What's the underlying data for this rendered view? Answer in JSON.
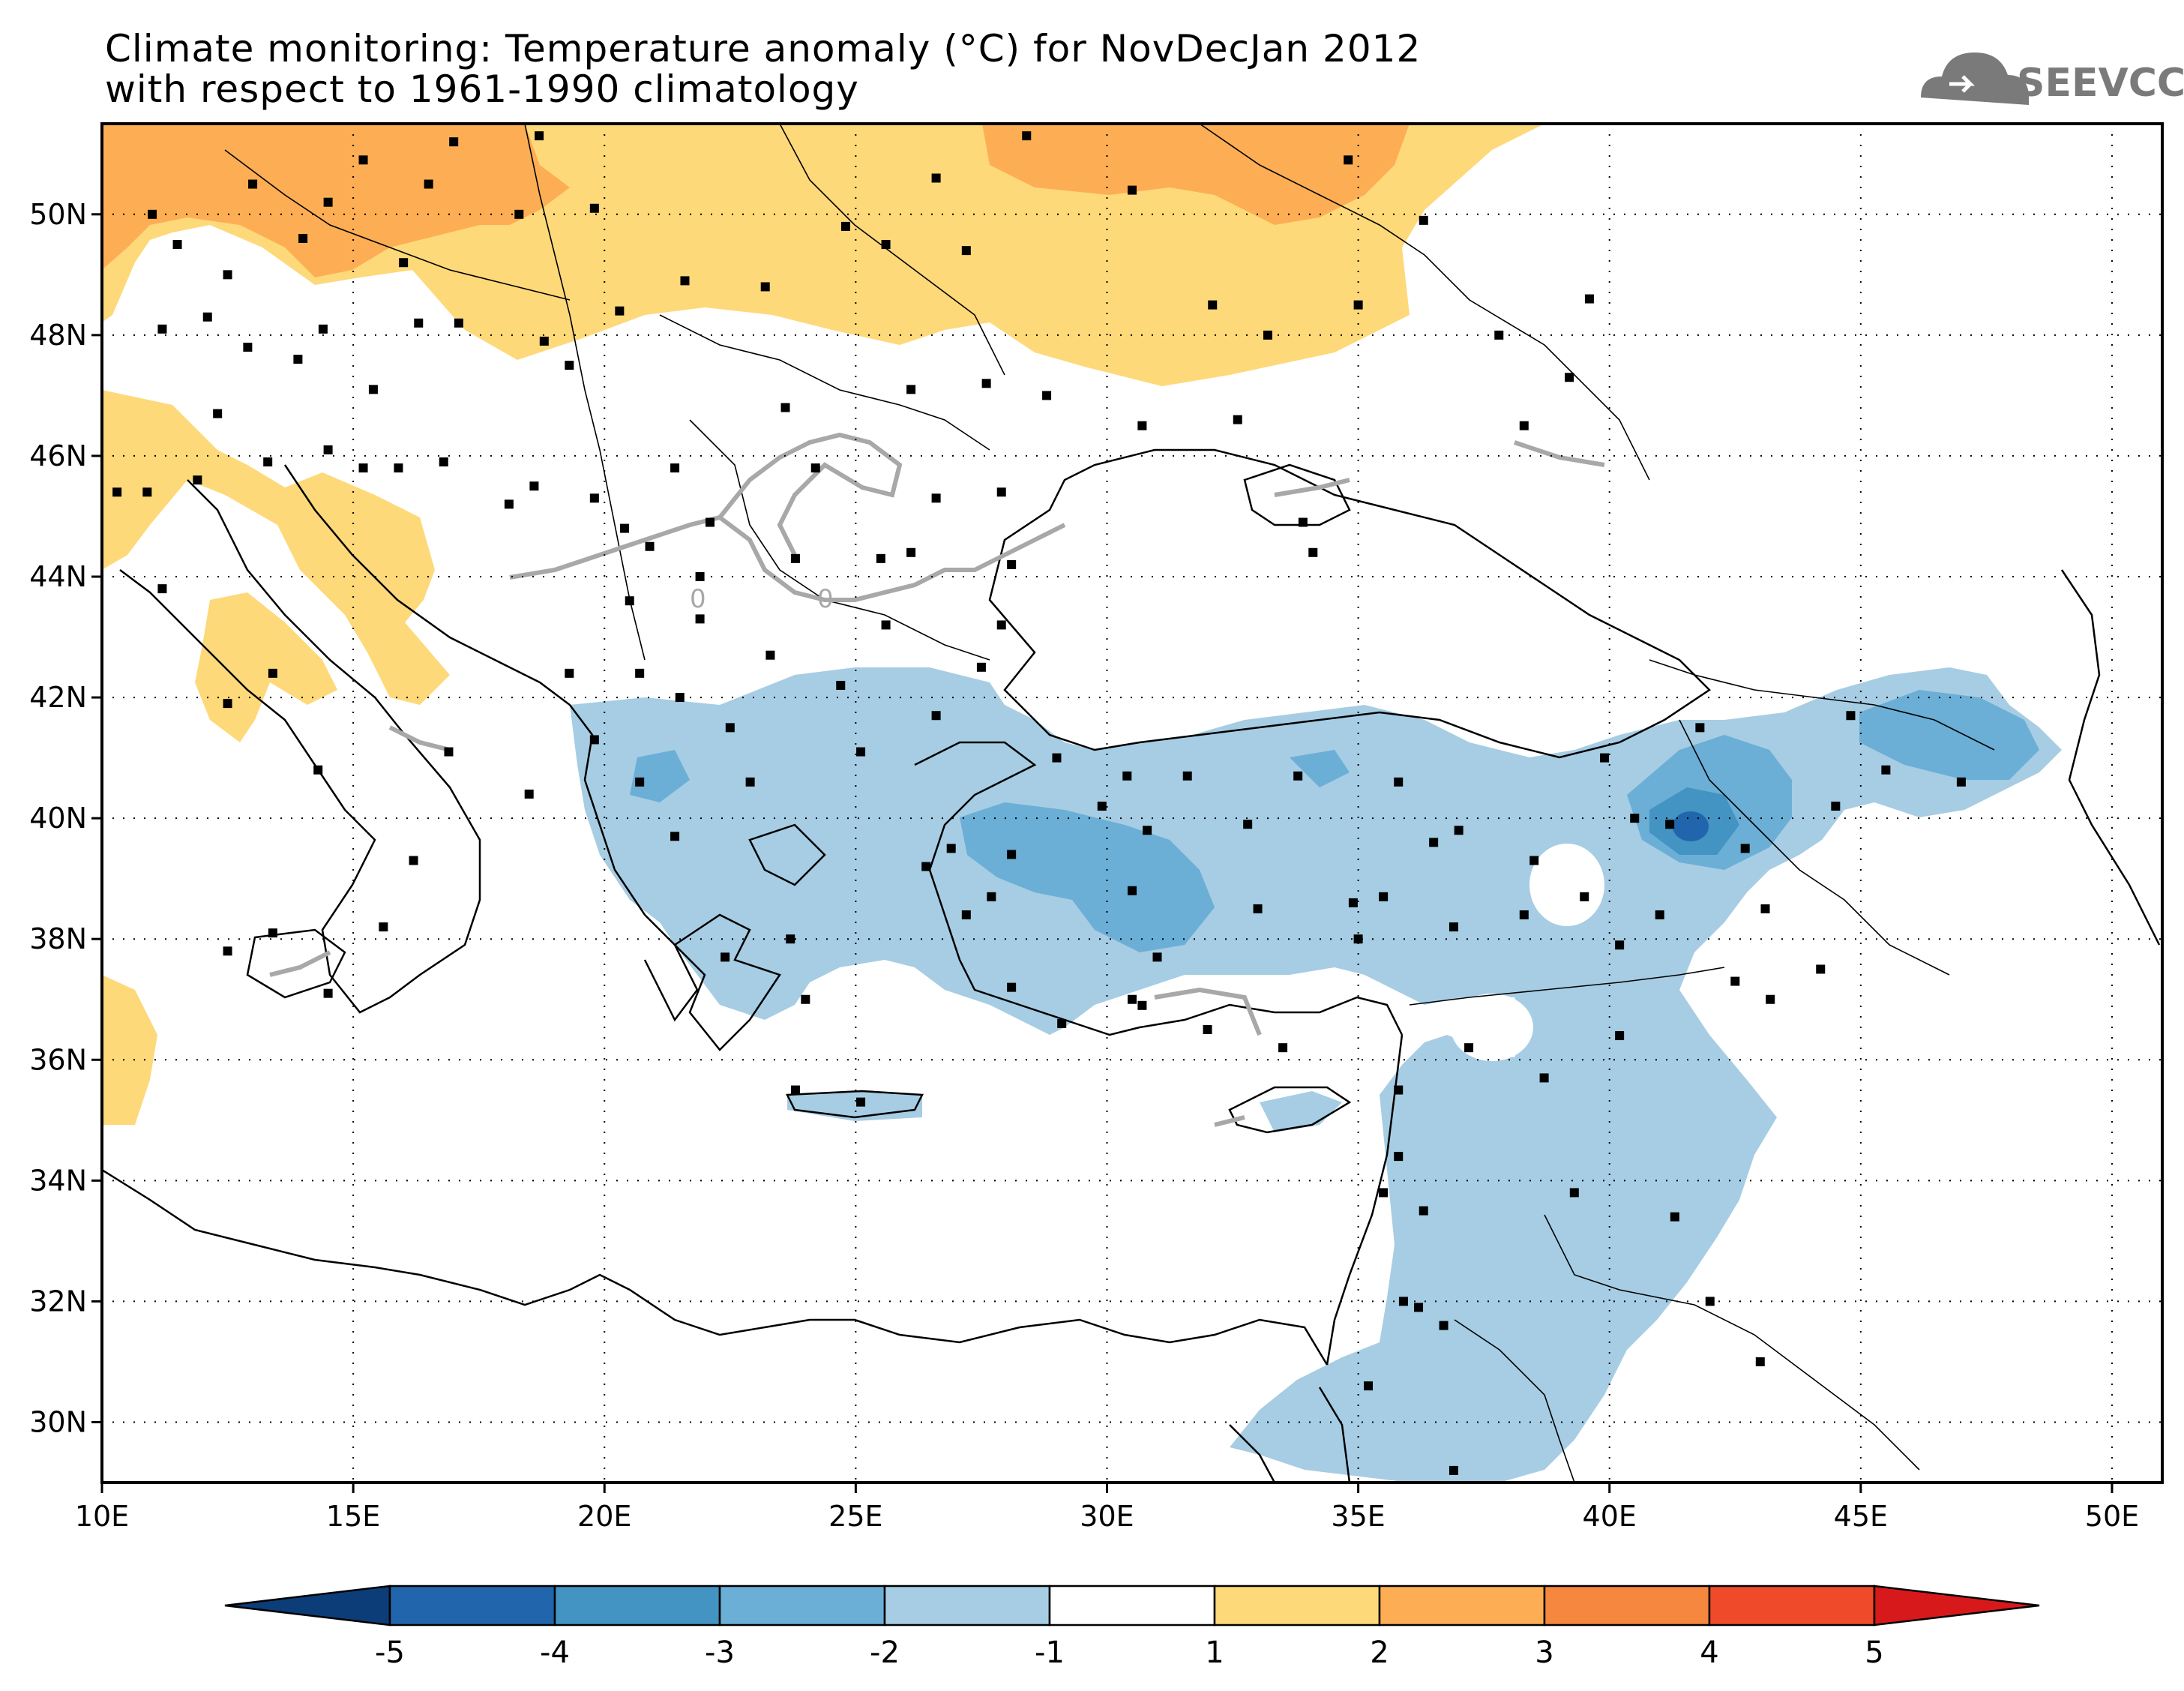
{
  "title": {
    "line1": "Climate monitoring: Temperature anomaly (°C) for NovDecJan 2012",
    "line2": "with respect to 1961-1990 climatology"
  },
  "logo": {
    "text": "SEEVCCC",
    "icon": "cloud-icon"
  },
  "map": {
    "lon_range": [
      10,
      51
    ],
    "lat_range": [
      29,
      51.5
    ],
    "x_ticks": [
      "10E",
      "15E",
      "20E",
      "25E",
      "30E",
      "35E",
      "40E",
      "45E",
      "50E"
    ],
    "y_ticks": [
      "30N",
      "32N",
      "34N",
      "36N",
      "38N",
      "40N",
      "42N",
      "44N",
      "46N",
      "48N",
      "50N"
    ],
    "grid": "dotted",
    "zero_contour_labels": [
      "0",
      "0"
    ]
  },
  "colorbar": {
    "labels": [
      "-5",
      "-4",
      "-3",
      "-2",
      "-1",
      "1",
      "2",
      "3",
      "4",
      "5"
    ],
    "colors": [
      "#0c3d78",
      "#2166ac",
      "#4393c3",
      "#6baed6",
      "#a6cde3",
      "#ffffff",
      "#fed97a",
      "#fdae55",
      "#f6873f",
      "#ef4b2b",
      "#d7191c"
    ],
    "extend": "both"
  },
  "colors": {
    "warm1": "#fed97a",
    "warm2": "#fdae55",
    "cool1": "#a6cde3",
    "cool2": "#6baed6",
    "cool3": "#4393c3",
    "cool4": "#2166ac",
    "zero_contour": "#a8a8a8"
  }
}
